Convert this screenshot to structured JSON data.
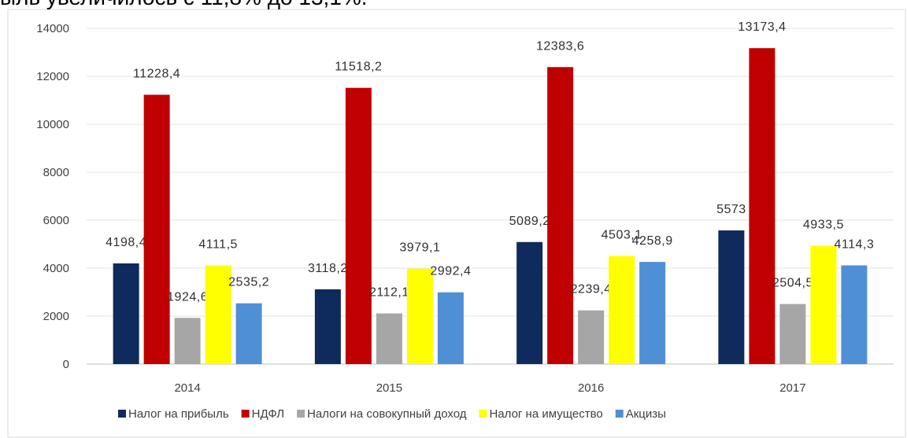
{
  "chart_data": {
    "type": "bar",
    "subtitle": "ыль увеличилось с 11,8% до 13,1%.",
    "categories": [
      "2014",
      "2015",
      "2016",
      "2017"
    ],
    "series": [
      {
        "name": "Налог на прибыль",
        "color": "#0f2a5c",
        "values": [
          4198.4,
          3118.2,
          5089.2,
          5573
        ],
        "value_labels": [
          "4198,4",
          "3118,2",
          "5089,2",
          "5573"
        ]
      },
      {
        "name": "НДФЛ",
        "color": "#c00000",
        "values": [
          11228.4,
          11518.2,
          12383.6,
          13173.4
        ],
        "value_labels": [
          "11228,4",
          "11518,2",
          "12383,6",
          "13173,4"
        ]
      },
      {
        "name": "Налоги на совокупный доход",
        "color": "#a6a6a6",
        "values": [
          1924.6,
          2112.1,
          2239.4,
          2504.5
        ],
        "value_labels": [
          "1924,6",
          "2112,1",
          "2239,4",
          "2504,5"
        ]
      },
      {
        "name": "Налог на имущество",
        "color": "#ffff00",
        "values": [
          4111.5,
          3979.1,
          4503.1,
          4933.5
        ],
        "value_labels": [
          "4111,5",
          "3979,1",
          "4503,1",
          "4933,5"
        ]
      },
      {
        "name": "Акцизы",
        "color": "#4f8fd6",
        "values": [
          2535.2,
          2992.4,
          4258.9,
          4114.3
        ],
        "value_labels": [
          "2535,2",
          "2992,4",
          "4258,9",
          "4114,3"
        ]
      }
    ],
    "ylim": [
      0,
      14000
    ],
    "yticks": [
      0,
      2000,
      4000,
      6000,
      8000,
      10000,
      12000,
      14000
    ],
    "grid": true,
    "legend": "bottom"
  }
}
